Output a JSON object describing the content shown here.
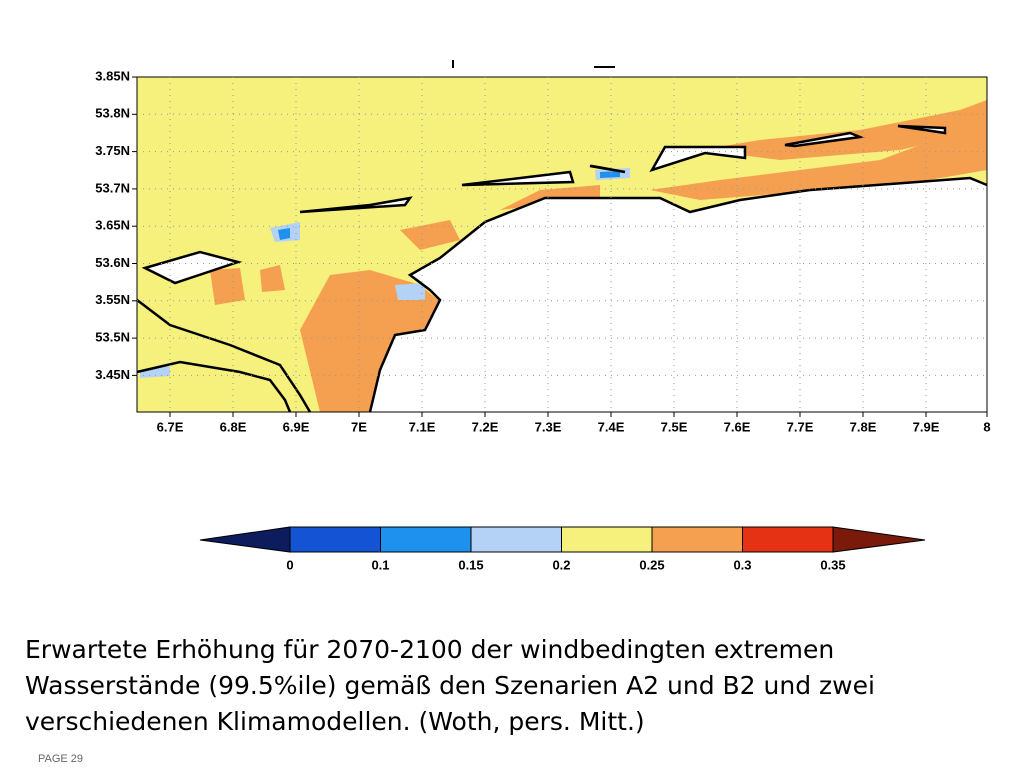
{
  "map": {
    "lat_labels": [
      "3.85N",
      "53.8N",
      "3.75N",
      "53.7N",
      "3.65N",
      "53.6N",
      "3.55N",
      "53.5N",
      "3.45N"
    ],
    "lon_labels": [
      "6.7E",
      "6.8E",
      "6.9E",
      "7E",
      "7.1E",
      "7.2E",
      "7.3E",
      "7.4E",
      "7.5E",
      "7.6E",
      "7.7E",
      "7.8E",
      "7.9E",
      "8"
    ]
  },
  "colorbar": {
    "labels": [
      "0",
      "0.1",
      "0.15",
      "0.2",
      "0.25",
      "0.3",
      "0.35"
    ],
    "colors": [
      "#0c1c5c",
      "#1454d4",
      "#1e90ee",
      "#b4d2f5",
      "#f6f07c",
      "#f5a050",
      "#e63214",
      "#7a1a0a"
    ]
  },
  "caption": [
    "Erwartete Erhöhung für 2070-2100 der windbedingten extremen",
    "Wasserstände (99.5%ile) gemäß den Szenarien A2 und B2 und zwei",
    "verschiedenen Klimamodellen. (Woth, pers. Mitt.)"
  ],
  "page": "PAGE 29"
}
